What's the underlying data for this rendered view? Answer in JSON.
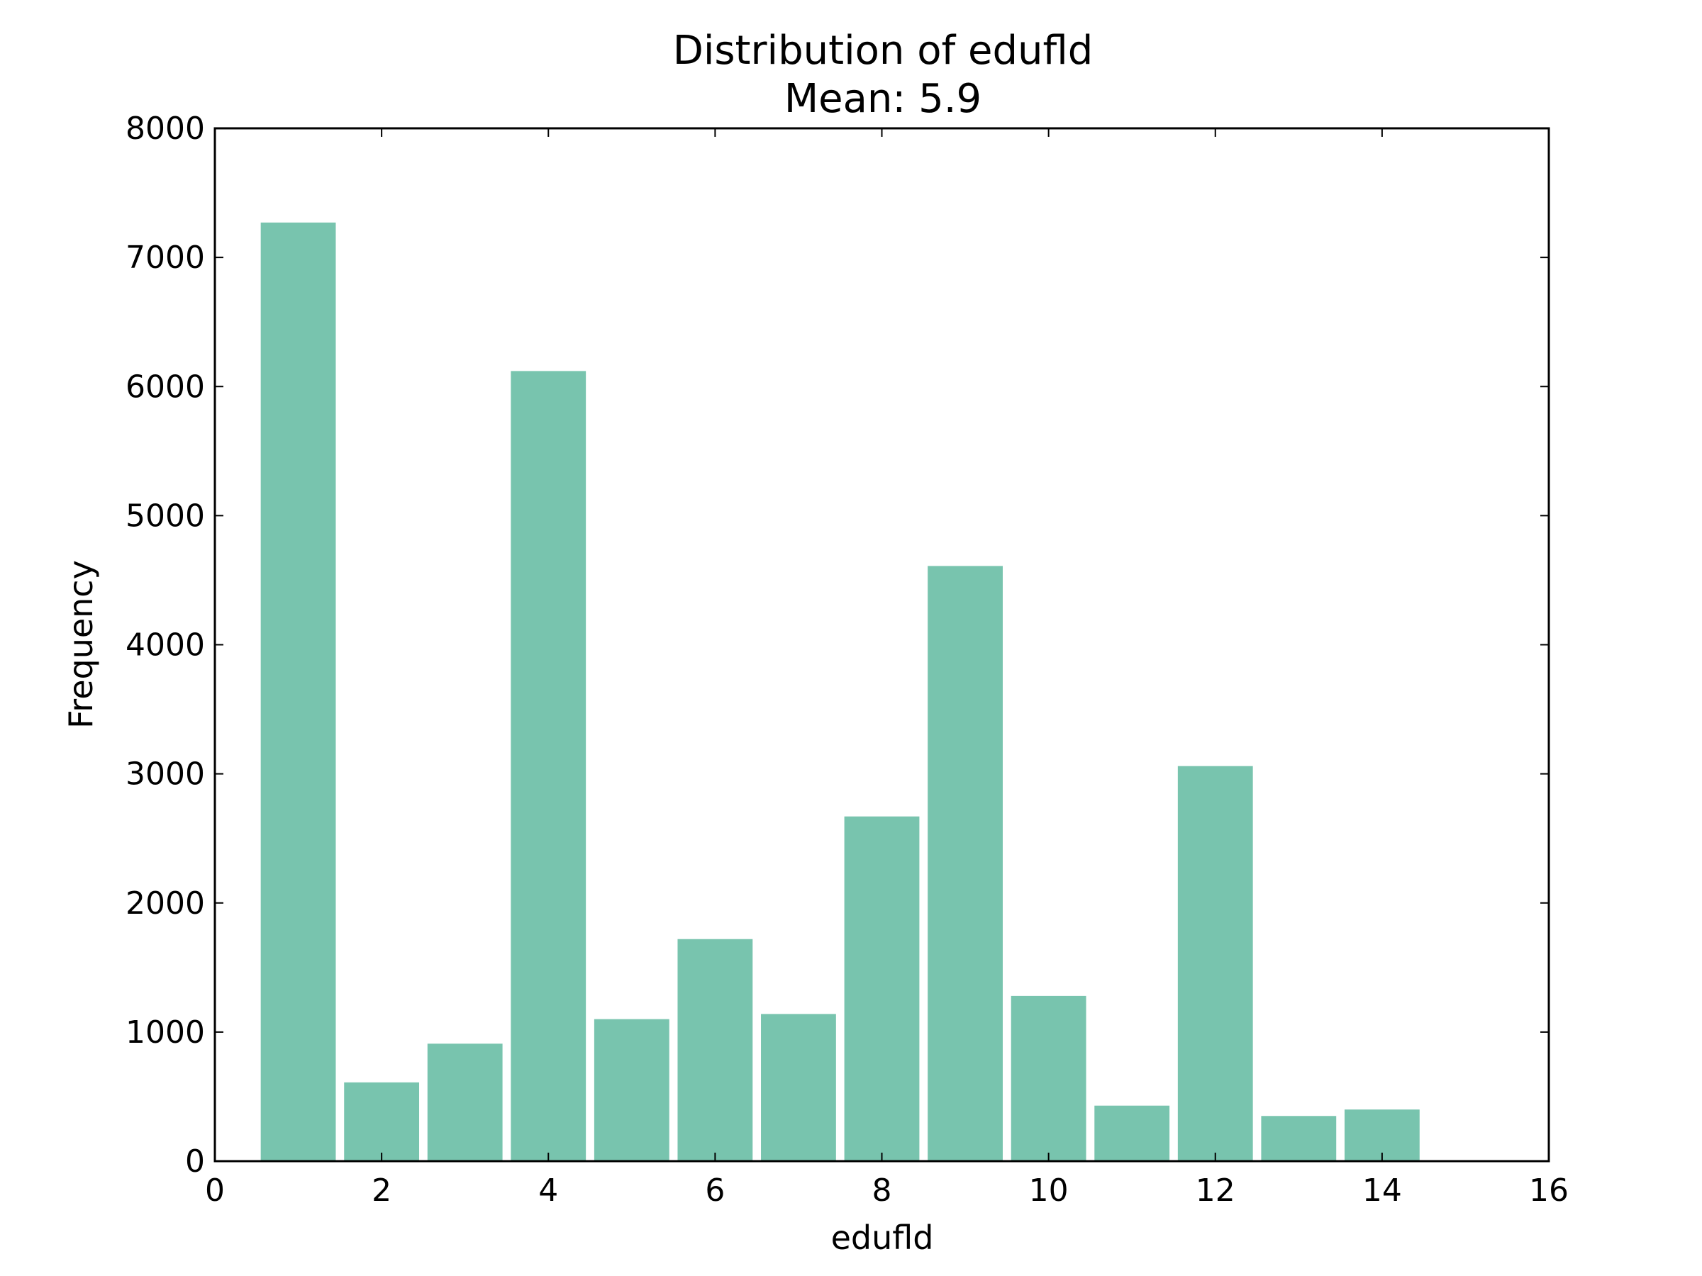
{
  "chart_data": {
    "type": "bar",
    "title": "Distribution of edufld",
    "subtitle": "Mean: 5.9",
    "xlabel": "edufld",
    "ylabel": "Frequency",
    "xlim": [
      0,
      16
    ],
    "ylim": [
      0,
      8000
    ],
    "xticks": [
      0,
      2,
      4,
      6,
      8,
      10,
      12,
      14,
      16
    ],
    "yticks": [
      0,
      1000,
      2000,
      3000,
      4000,
      5000,
      6000,
      7000,
      8000
    ],
    "bar_width": 0.9,
    "bar_color": "#78c4ae",
    "grid": false,
    "x": [
      1,
      2,
      3,
      4,
      5,
      6,
      7,
      8,
      9,
      10,
      11,
      12,
      13,
      14
    ],
    "values": [
      7270,
      610,
      910,
      6120,
      1100,
      1720,
      1140,
      2670,
      4610,
      1280,
      430,
      3060,
      350,
      400
    ]
  }
}
